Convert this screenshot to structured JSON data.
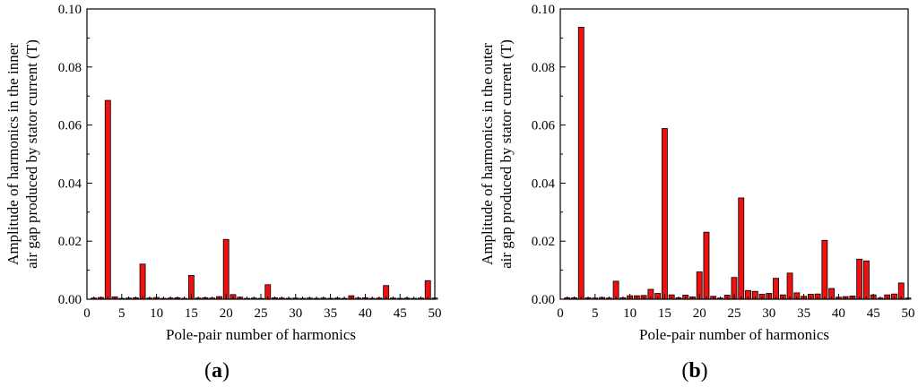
{
  "figure": {
    "panel_a_label": {
      "open": "(",
      "letter": "a",
      "close": ")"
    },
    "panel_b_label": {
      "open": "(",
      "letter": "b",
      "close": ")"
    }
  },
  "chart_data": [
    {
      "type": "bar",
      "title": "",
      "xlabel": "Pole-pair number of harmonics",
      "ylabel_lines": [
        "Amplitude of harmonics in the inner",
        "air gap produced by stator current (T)"
      ],
      "xlim": [
        0,
        50
      ],
      "ylim": [
        0,
        0.1
      ],
      "xticks": [
        0,
        5,
        10,
        15,
        20,
        25,
        30,
        35,
        40,
        45,
        50
      ],
      "xtick_labels": [
        "0",
        "5",
        "10",
        "15",
        "20",
        "25",
        "30",
        "35",
        "40",
        "45",
        "50"
      ],
      "yticks": [
        0,
        0.02,
        0.04,
        0.06,
        0.08,
        0.1
      ],
      "ytick_labels": [
        "0.00",
        "0.02",
        "0.04",
        "0.06",
        "0.08",
        "0.10"
      ],
      "grid": false,
      "bar_color": "#ee1111",
      "x": [
        1,
        2,
        3,
        4,
        5,
        6,
        7,
        8,
        9,
        10,
        11,
        12,
        13,
        14,
        15,
        16,
        17,
        18,
        19,
        20,
        21,
        22,
        23,
        24,
        25,
        26,
        27,
        28,
        29,
        30,
        31,
        32,
        33,
        34,
        35,
        36,
        37,
        38,
        39,
        40,
        41,
        42,
        43,
        44,
        45,
        46,
        47,
        48,
        49,
        50
      ],
      "values": [
        0.0004,
        0.0006,
        0.0685,
        0.0008,
        0.0003,
        0.0004,
        0.0005,
        0.0121,
        0.0004,
        0.0006,
        0.0003,
        0.0004,
        0.0005,
        0.0003,
        0.0082,
        0.0004,
        0.0005,
        0.0004,
        0.0009,
        0.0206,
        0.0016,
        0.0007,
        0.0003,
        0.0004,
        0.0003,
        0.005,
        0.0005,
        0.0004,
        0.0003,
        0.0004,
        0.0003,
        0.0004,
        0.0003,
        0.0004,
        0.0003,
        0.0004,
        0.0003,
        0.0012,
        0.0004,
        0.0005,
        0.0003,
        0.0004,
        0.0047,
        0.0004,
        0.0003,
        0.0004,
        0.0003,
        0.0004,
        0.0064,
        0.0004
      ]
    },
    {
      "type": "bar",
      "title": "",
      "xlabel": "Pole-pair number of harmonics",
      "ylabel_lines": [
        "Amplitude of harmonics in the outer",
        "air gap produced by stator current (T)"
      ],
      "xlim": [
        0,
        50
      ],
      "ylim": [
        0,
        0.1
      ],
      "xticks": [
        0,
        5,
        10,
        15,
        20,
        25,
        30,
        35,
        40,
        45,
        50
      ],
      "xtick_labels": [
        "0",
        "5",
        "10",
        "15",
        "20",
        "25",
        "30",
        "35",
        "40",
        "45",
        "50"
      ],
      "yticks": [
        0,
        0.02,
        0.04,
        0.06,
        0.08,
        0.1
      ],
      "ytick_labels": [
        "0.00",
        "0.02",
        "0.04",
        "0.06",
        "0.08",
        "0.10"
      ],
      "grid": false,
      "bar_color": "#ee1111",
      "x": [
        1,
        2,
        3,
        4,
        5,
        6,
        7,
        8,
        9,
        10,
        11,
        12,
        13,
        14,
        15,
        16,
        17,
        18,
        19,
        20,
        21,
        22,
        23,
        24,
        25,
        26,
        27,
        28,
        29,
        30,
        31,
        32,
        33,
        34,
        35,
        36,
        37,
        38,
        39,
        40,
        41,
        42,
        43,
        44,
        45,
        46,
        47,
        48,
        49,
        50
      ],
      "values": [
        0.0005,
        0.0005,
        0.0937,
        0.0005,
        0.0004,
        0.0006,
        0.0004,
        0.0062,
        0.0005,
        0.0012,
        0.0012,
        0.0013,
        0.0034,
        0.002,
        0.0588,
        0.0015,
        0.0005,
        0.0014,
        0.0008,
        0.0094,
        0.0231,
        0.001,
        0.0004,
        0.0014,
        0.0075,
        0.0349,
        0.003,
        0.0027,
        0.0017,
        0.002,
        0.0072,
        0.0015,
        0.009,
        0.0022,
        0.001,
        0.0017,
        0.0018,
        0.0203,
        0.0037,
        0.0007,
        0.0009,
        0.0011,
        0.0138,
        0.0132,
        0.0015,
        0.0004,
        0.0015,
        0.0018,
        0.0056,
        0.0004
      ]
    }
  ]
}
